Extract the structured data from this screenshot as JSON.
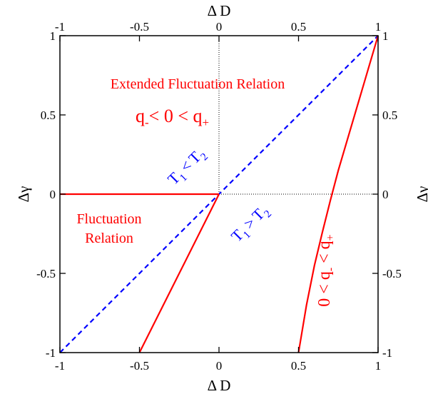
{
  "chart_data": {
    "type": "line",
    "xlabel": "Δ D",
    "x2label": "Δ D",
    "ylabel": "Δγ",
    "y2label": "Δγ",
    "xlim": [
      -1,
      1
    ],
    "ylim": [
      -1,
      1
    ],
    "xticks": [
      -1,
      -0.5,
      0,
      0.5,
      1
    ],
    "yticks": [
      -1,
      -0.5,
      0,
      0.5,
      1
    ],
    "xtick_labels": [
      "-1",
      "-0.5",
      "0",
      "0.5",
      "1"
    ],
    "ytick_labels": [
      "-1",
      "-0.5",
      "0",
      "0.5",
      "1"
    ],
    "grid": false,
    "reference_lines": [
      {
        "orientation": "vertical",
        "value": 0,
        "from": 0,
        "to": 1,
        "style": "dotted",
        "color": "#000000"
      },
      {
        "orientation": "horizontal",
        "value": 0,
        "from": 0,
        "to": 1,
        "style": "dotted",
        "color": "#000000"
      }
    ],
    "series": [
      {
        "color": "#0000ff",
        "style": "dashed",
        "x": [
          -1,
          1
        ],
        "y": [
          -1,
          1
        ]
      },
      {
        "color": "#ff0000",
        "style": "solid",
        "x": [
          -1,
          0
        ],
        "y": [
          0,
          0
        ]
      },
      {
        "color": "#ff0000",
        "style": "solid",
        "x": [
          -0.5,
          0
        ],
        "y": [
          -1,
          0
        ]
      },
      {
        "color": "#ff0000",
        "style": "solid",
        "x": [
          0.5,
          0.55,
          0.6,
          0.65,
          0.7,
          0.75,
          0.8,
          0.85,
          0.9,
          0.95,
          1.0
        ],
        "y": [
          -1.0,
          -0.7,
          -0.45,
          -0.24,
          -0.04,
          0.15,
          0.32,
          0.49,
          0.66,
          0.83,
          1.0
        ]
      }
    ],
    "annotations": {
      "extended_title": "Extended Fluctuation Relation",
      "extended_condition": {
        "q_a": "q",
        "q_a_sub": "-",
        "mid": "< 0 < ",
        "q_b": "q",
        "q_b_sub": "+"
      },
      "fluct_line1": "Fluctuation",
      "fluct_line2": "Relation",
      "t_upper": {
        "a": "T",
        "a_sub": "1",
        "op": "<",
        "b": "T",
        "b_sub": "2"
      },
      "t_lower": {
        "a": "T",
        "a_sub": "1",
        "op": ">",
        "b": "T",
        "b_sub": "2"
      },
      "rotated_condition": {
        "pre": "0 < ",
        "q_a": "q",
        "q_a_sub": "-",
        "mid": " < ",
        "q_b": "q",
        "q_b_sub": "+"
      }
    }
  }
}
